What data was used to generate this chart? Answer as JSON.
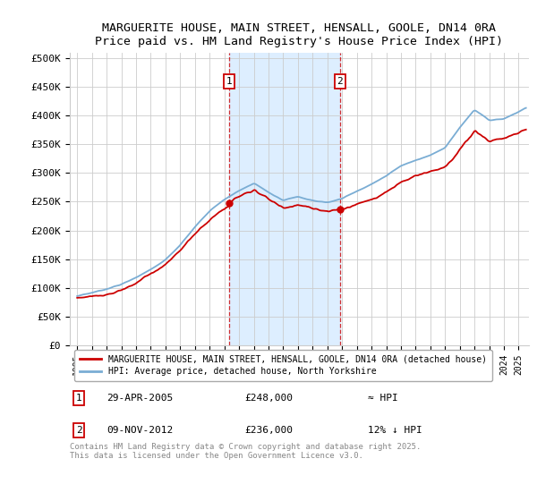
{
  "title": "MARGUERITE HOUSE, MAIN STREET, HENSALL, GOOLE, DN14 0RA",
  "subtitle": "Price paid vs. HM Land Registry's House Price Index (HPI)",
  "ylabel_ticks": [
    "£0",
    "£50K",
    "£100K",
    "£150K",
    "£200K",
    "£250K",
    "£300K",
    "£350K",
    "£400K",
    "£450K",
    "£500K"
  ],
  "ytick_values": [
    0,
    50000,
    100000,
    150000,
    200000,
    250000,
    300000,
    350000,
    400000,
    450000,
    500000
  ],
  "ylim": [
    0,
    510000
  ],
  "xlim_start": 1994.5,
  "xlim_end": 2025.7,
  "sale1_date": 2005.33,
  "sale1_price": 248000,
  "sale1_label": "1",
  "sale2_date": 2012.86,
  "sale2_price": 236000,
  "sale2_label": "2",
  "legend_line1": "MARGUERITE HOUSE, MAIN STREET, HENSALL, GOOLE, DN14 0RA (detached house)",
  "legend_line2": "HPI: Average price, detached house, North Yorkshire",
  "footer": "Contains HM Land Registry data © Crown copyright and database right 2025.\nThis data is licensed under the Open Government Licence v3.0.",
  "price_color": "#cc0000",
  "hpi_color": "#7aadd4",
  "grid_color": "#cccccc",
  "highlight_bg": "#ddeeff",
  "ann1_date": "29-APR-2005",
  "ann1_price": "£248,000",
  "ann1_note": "≈ HPI",
  "ann2_date": "09-NOV-2012",
  "ann2_price": "£236,000",
  "ann2_note": "12% ↓ HPI"
}
